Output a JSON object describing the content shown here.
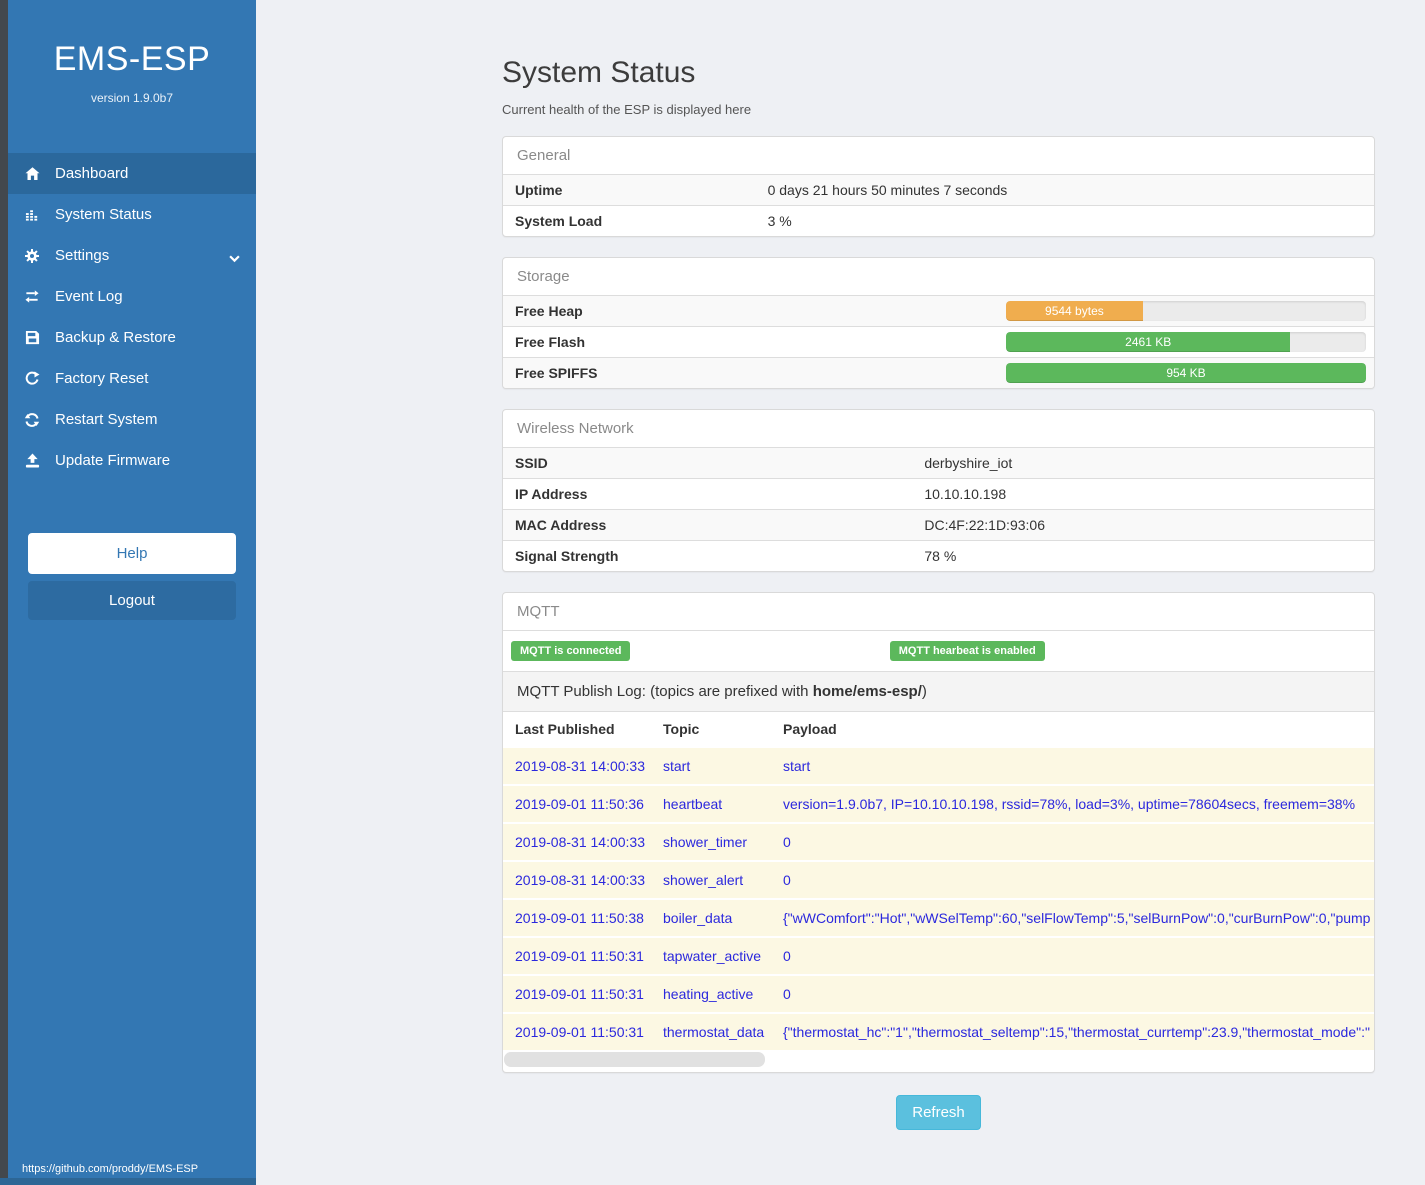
{
  "sidebar": {
    "brand": "EMS-ESP",
    "version": "version 1.9.0b7",
    "items": [
      {
        "label": "Dashboard",
        "icon": "home-icon",
        "active": true
      },
      {
        "label": "System Status",
        "icon": "system-status-icon",
        "active": false
      },
      {
        "label": "Settings",
        "icon": "gear-icon",
        "active": false,
        "chevron": true
      },
      {
        "label": "Event Log",
        "icon": "exchange-icon",
        "active": false
      },
      {
        "label": "Backup & Restore",
        "icon": "save-icon",
        "active": false
      },
      {
        "label": "Factory Reset",
        "icon": "redo-icon",
        "active": false
      },
      {
        "label": "Restart System",
        "icon": "refresh-icon",
        "active": false
      },
      {
        "label": "Update Firmware",
        "icon": "upload-icon",
        "active": false
      }
    ],
    "help_label": "Help",
    "logout_label": "Logout",
    "footer_url": "https://github.com/proddy/EMS-ESP"
  },
  "header": {
    "title": "System Status",
    "subtitle": "Current health of the ESP is displayed here"
  },
  "panels": {
    "general": {
      "title": "General",
      "rows": [
        {
          "label": "Uptime",
          "value": "0 days 21 hours 50 minutes 7 seconds"
        },
        {
          "label": "System Load",
          "value": "3 %"
        }
      ]
    },
    "storage": {
      "title": "Storage",
      "rows": [
        {
          "label": "Free Heap",
          "value": "9544 bytes",
          "pct": 38,
          "color": "#f0ad4e"
        },
        {
          "label": "Free Flash",
          "value": "2461 KB",
          "pct": 79,
          "color": "#5cb85c"
        },
        {
          "label": "Free SPIFFS",
          "value": "954 KB",
          "pct": 100,
          "color": "#5cb85c"
        }
      ]
    },
    "wireless": {
      "title": "Wireless Network",
      "rows": [
        {
          "label": "SSID",
          "value": "derbyshire_iot"
        },
        {
          "label": "IP Address",
          "value": "10.10.10.198"
        },
        {
          "label": "MAC Address",
          "value": "DC:4F:22:1D:93:06"
        },
        {
          "label": "Signal Strength",
          "value": "78 %"
        }
      ]
    },
    "mqtt": {
      "title": "MQTT",
      "badges": [
        {
          "label": "MQTT is connected",
          "color": "#5cb85c"
        },
        {
          "label": "MQTT hearbeat is enabled",
          "color": "#5cb85c"
        }
      ],
      "log_title_pre": "MQTT Publish Log: (topics are prefixed with ",
      "log_title_bold": "home/ems-esp/",
      "log_title_post": ")",
      "columns": [
        "Last Published",
        "Topic",
        "Payload"
      ],
      "rows": [
        {
          "published": "2019-08-31 14:00:33",
          "topic": "start",
          "payload": "start"
        },
        {
          "published": "2019-09-01 11:50:36",
          "topic": "heartbeat",
          "payload": "version=1.9.0b7, IP=10.10.10.198, rssid=78%, load=3%, uptime=78604secs, freemem=38%"
        },
        {
          "published": "2019-08-31 14:00:33",
          "topic": "shower_timer",
          "payload": "0"
        },
        {
          "published": "2019-08-31 14:00:33",
          "topic": "shower_alert",
          "payload": "0"
        },
        {
          "published": "2019-09-01 11:50:38",
          "topic": "boiler_data",
          "payload": "{\"wWComfort\":\"Hot\",\"wWSelTemp\":60,\"selFlowTemp\":5,\"selBurnPow\":0,\"curBurnPow\":0,\"pump"
        },
        {
          "published": "2019-09-01 11:50:31",
          "topic": "tapwater_active",
          "payload": "0"
        },
        {
          "published": "2019-09-01 11:50:31",
          "topic": "heating_active",
          "payload": "0"
        },
        {
          "published": "2019-09-01 11:50:31",
          "topic": "thermostat_data",
          "payload": "{\"thermostat_hc\":\"1\",\"thermostat_seltemp\":15,\"thermostat_currtemp\":23.9,\"thermostat_mode\":\""
        }
      ]
    }
  },
  "refresh_label": "Refresh",
  "colors": {
    "sidebar": "#3377b3",
    "sidebar_active": "#2b689c",
    "badge_green": "#5cb85c",
    "bar_orange": "#f0ad4e",
    "bar_green": "#5cb85c",
    "refresh_blue": "#5bc0de",
    "log_row_bg": "#fcf8e3",
    "log_text_blue": "#2b28dd"
  }
}
